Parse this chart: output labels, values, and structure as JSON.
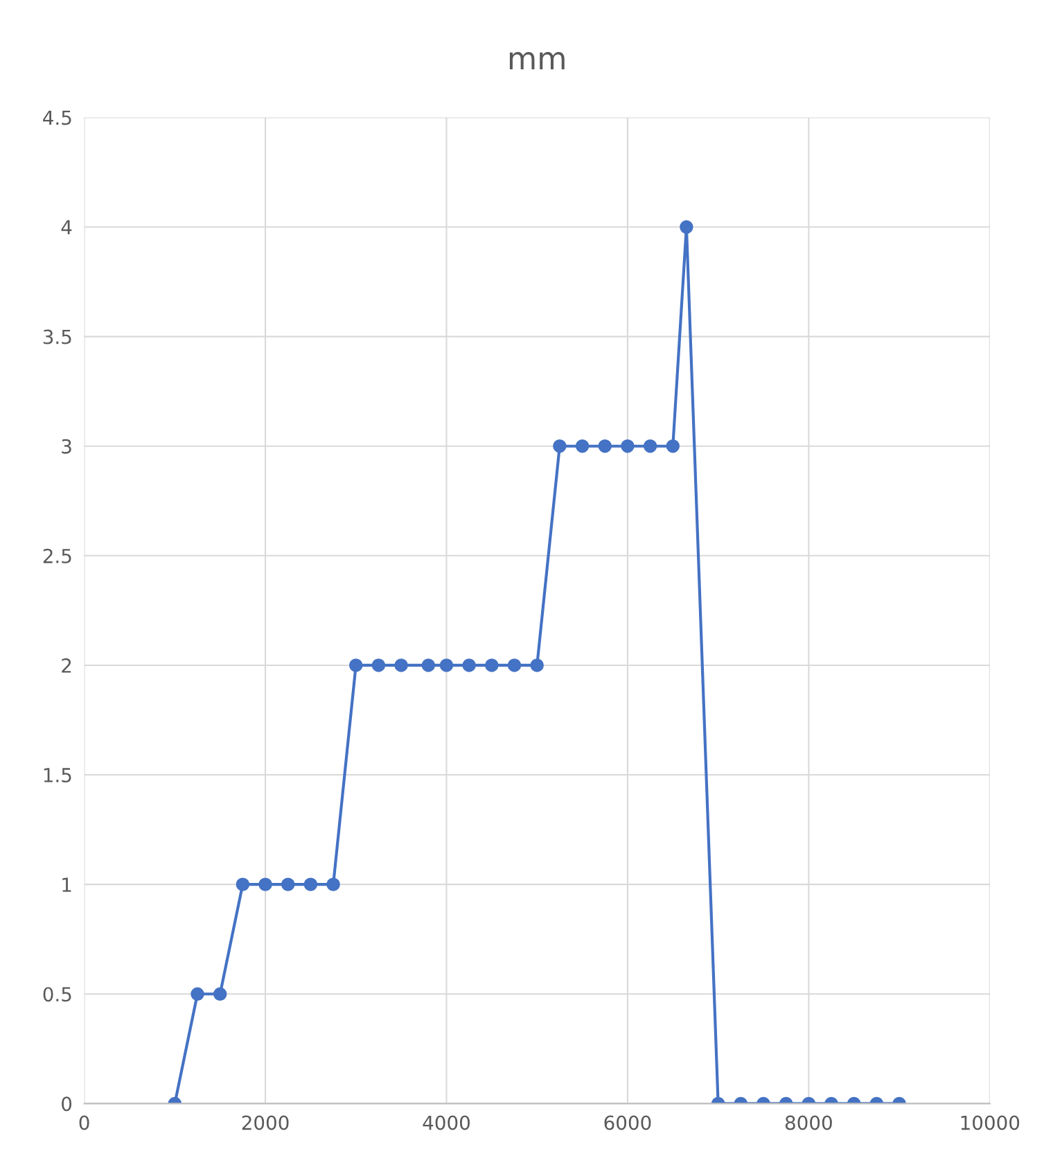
{
  "chart_data": {
    "type": "line",
    "title": "mm",
    "x": [
      1000,
      1250,
      1500,
      1750,
      2000,
      2250,
      2500,
      2750,
      3000,
      3250,
      3500,
      3800,
      4000,
      4250,
      4500,
      4750,
      5000,
      5250,
      5500,
      5750,
      6000,
      6250,
      6500,
      6650,
      7000,
      7250,
      7500,
      7750,
      8000,
      8250,
      8500,
      8750,
      9000
    ],
    "series": [
      {
        "color": "#4472c4",
        "values": [
          0,
          0.5,
          0.5,
          1,
          1,
          1,
          1,
          1,
          2,
          2,
          2,
          2,
          2,
          2,
          2,
          2,
          2,
          3,
          3,
          3,
          3,
          3,
          3,
          4,
          0,
          0,
          0,
          0,
          0,
          0,
          0,
          0,
          0
        ]
      }
    ],
    "xlim": [
      0,
      10000
    ],
    "xticks": [
      0,
      2000,
      4000,
      6000,
      8000,
      10000
    ],
    "ylim": [
      0,
      4.5
    ],
    "yticks": [
      0,
      0.5,
      1,
      1.5,
      2,
      2.5,
      3,
      3.5,
      4,
      4.5
    ],
    "grid": true,
    "marker": "circle",
    "line_style": "solid"
  }
}
